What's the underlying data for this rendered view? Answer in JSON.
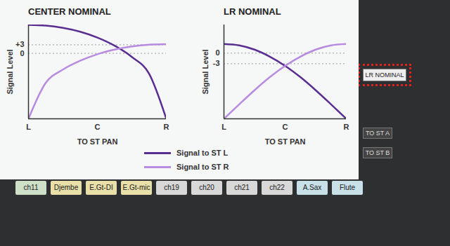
{
  "chart_data": [
    {
      "type": "line",
      "title": "CENTER NOMINAL",
      "xlabel": "TO ST PAN",
      "ylabel": "Signal Level",
      "x": [
        0,
        0.25,
        0.5,
        0.75,
        1,
        1.25,
        1.5,
        1.75,
        2
      ],
      "xlim": [
        0,
        2
      ],
      "xticks": [
        {
          "value": 0,
          "label": "L"
        },
        {
          "value": 1,
          "label": "C"
        },
        {
          "value": 2,
          "label": "R"
        }
      ],
      "ylim": [
        -23,
        10
      ],
      "yticks": [
        {
          "value": 3,
          "label": "+3"
        },
        0
      ],
      "grid": true,
      "legend": "bottom",
      "series": [
        {
          "name": "Signal to ST L",
          "color": "#5a2d91",
          "values": [
            10,
            9.75,
            8.95,
            7.6,
            5.55,
            2.7,
            -1.25,
            -7.15,
            -23
          ]
        },
        {
          "name": "Signal to ST R",
          "color": "#b78be0",
          "values": [
            -23,
            -10.4,
            -5.7,
            -2.6,
            -0.3,
            1.3,
            2.4,
            3.05,
            3.25
          ]
        }
      ]
    },
    {
      "type": "line",
      "title": "LR NOMINAL",
      "xlabel": "TO ST PAN",
      "ylabel": "Signal Level",
      "x": [
        0,
        0.25,
        0.5,
        0.75,
        1,
        1.25,
        1.5,
        1.75,
        2
      ],
      "xlim": [
        0,
        2
      ],
      "xticks": [
        {
          "value": 0,
          "label": "L"
        },
        {
          "value": 1,
          "label": "C"
        },
        {
          "value": 2,
          "label": "R"
        }
      ],
      "ylim": [
        -18.6,
        8
      ],
      "yticks": [
        0,
        -3
      ],
      "grid": true,
      "series": [
        {
          "name": "Signal to ST L",
          "color": "#5a2d91",
          "values": [
            2.6,
            2.2,
            1.0,
            -1.0,
            -3.6,
            -6.8,
            -10.5,
            -14.5,
            -18.6
          ]
        },
        {
          "name": "Signal to ST R",
          "color": "#b78be0",
          "values": [
            -18.6,
            -14.5,
            -10.5,
            -6.8,
            -3.6,
            -1.0,
            1.0,
            2.2,
            2.6
          ]
        }
      ]
    }
  ],
  "background": {
    "channels": [
      "ch11",
      "Djembe",
      "E.Gt-DI",
      "E.Gt-mic",
      "ch19",
      "ch20",
      "ch21",
      "ch22",
      "A.Sax",
      "Flute"
    ],
    "highlight_button": "LR NOMINAL",
    "buttons": [
      "TO ST A",
      "TO ST B"
    ]
  }
}
